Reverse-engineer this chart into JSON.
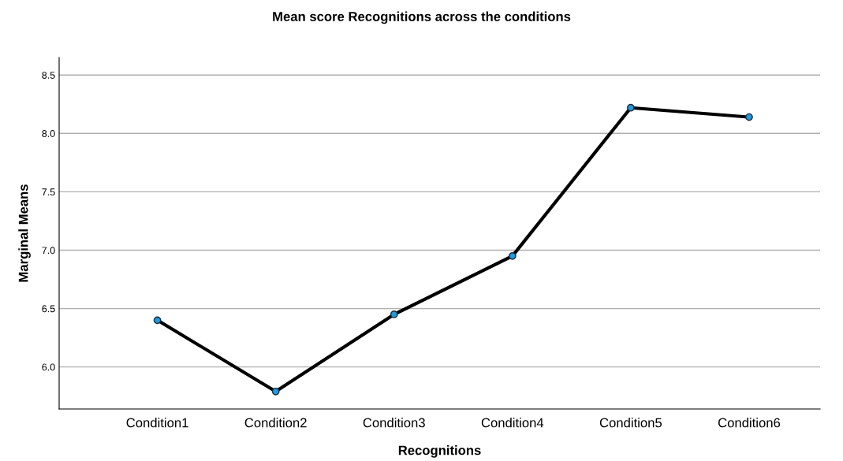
{
  "chart_data": {
    "type": "line",
    "title": "Mean score Recognitions across the conditions",
    "xlabel": "Recognitions",
    "ylabel": "Marginal Means",
    "categories": [
      "Condition1",
      "Condition2",
      "Condition3",
      "Condition4",
      "Condition5",
      "Condition6"
    ],
    "series": [
      {
        "color": "#000000",
        "values": [
          6.4,
          5.79,
          6.45,
          6.95,
          8.22,
          8.14
        ]
      }
    ],
    "ylim": [
      5.64,
      8.65
    ],
    "yticks": [
      {
        "value": 6.0,
        "label": "6.0"
      },
      {
        "value": 6.5,
        "label": "6.5"
      },
      {
        "value": 7.0,
        "label": "7.0"
      },
      {
        "value": 7.5,
        "label": "7.5"
      },
      {
        "value": 8.0,
        "label": "8.0"
      },
      {
        "value": 8.5,
        "label": "8.5"
      }
    ],
    "grid": "y",
    "marker": "circle",
    "line_style": "solid"
  }
}
